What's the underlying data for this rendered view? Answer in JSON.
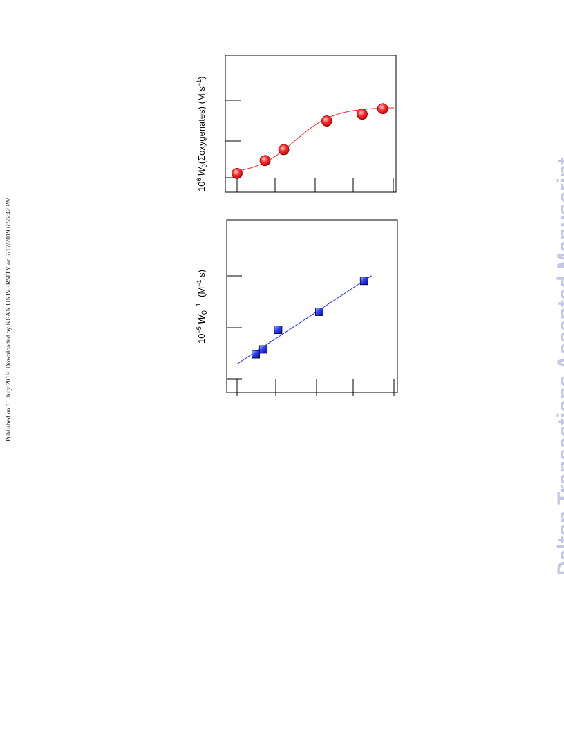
{
  "side_note": "Published on 16 July 2019. Downloaded by KEAN UNIVERSITY on 7/17/2019 6:55:42 PM.",
  "watermark": "Dalton Transactions Accepted Manuscript",
  "chart_data": [
    {
      "type": "scatter",
      "orientation": "rotated-90",
      "ylabel_parts": {
        "prefix": "10",
        "exp": "6",
        "var": "W",
        "sub": "0",
        "body": "(Σoxygenates) (M s",
        "unit_exp": "−1",
        "close": ")"
      },
      "x_ticks": 5,
      "y_ticks": 3,
      "xlim": [
        0,
        4.2
      ],
      "ylim": [
        0,
        4
      ],
      "marker": "circle",
      "color": "#ff2020",
      "fit": "curve",
      "series": [
        {
          "x": [
            0,
            0.75,
            1.25,
            2.4,
            3.35,
            3.9
          ],
          "y": [
            0.18,
            0.65,
            1.05,
            2.1,
            2.35,
            2.55
          ]
        }
      ]
    },
    {
      "type": "scatter",
      "orientation": "rotated-90",
      "ylabel_parts": {
        "prefix": "10",
        "exp": "−5",
        "var": "W",
        "sub": "0",
        "sup": "1",
        "unit": "(M",
        "unit_exp": "−1",
        "unit_end": " s)"
      },
      "x_ticks": 5,
      "y_ticks": 3,
      "xlim": [
        0,
        4.2
      ],
      "ylim": [
        0,
        4
      ],
      "marker": "square",
      "color": "#2030ff",
      "fit": "linear",
      "series": [
        {
          "x": [
            0.5,
            0.7,
            1.1,
            2.2,
            3.4
          ],
          "y": [
            0.65,
            0.78,
            1.3,
            1.78,
            2.6
          ]
        }
      ]
    }
  ]
}
